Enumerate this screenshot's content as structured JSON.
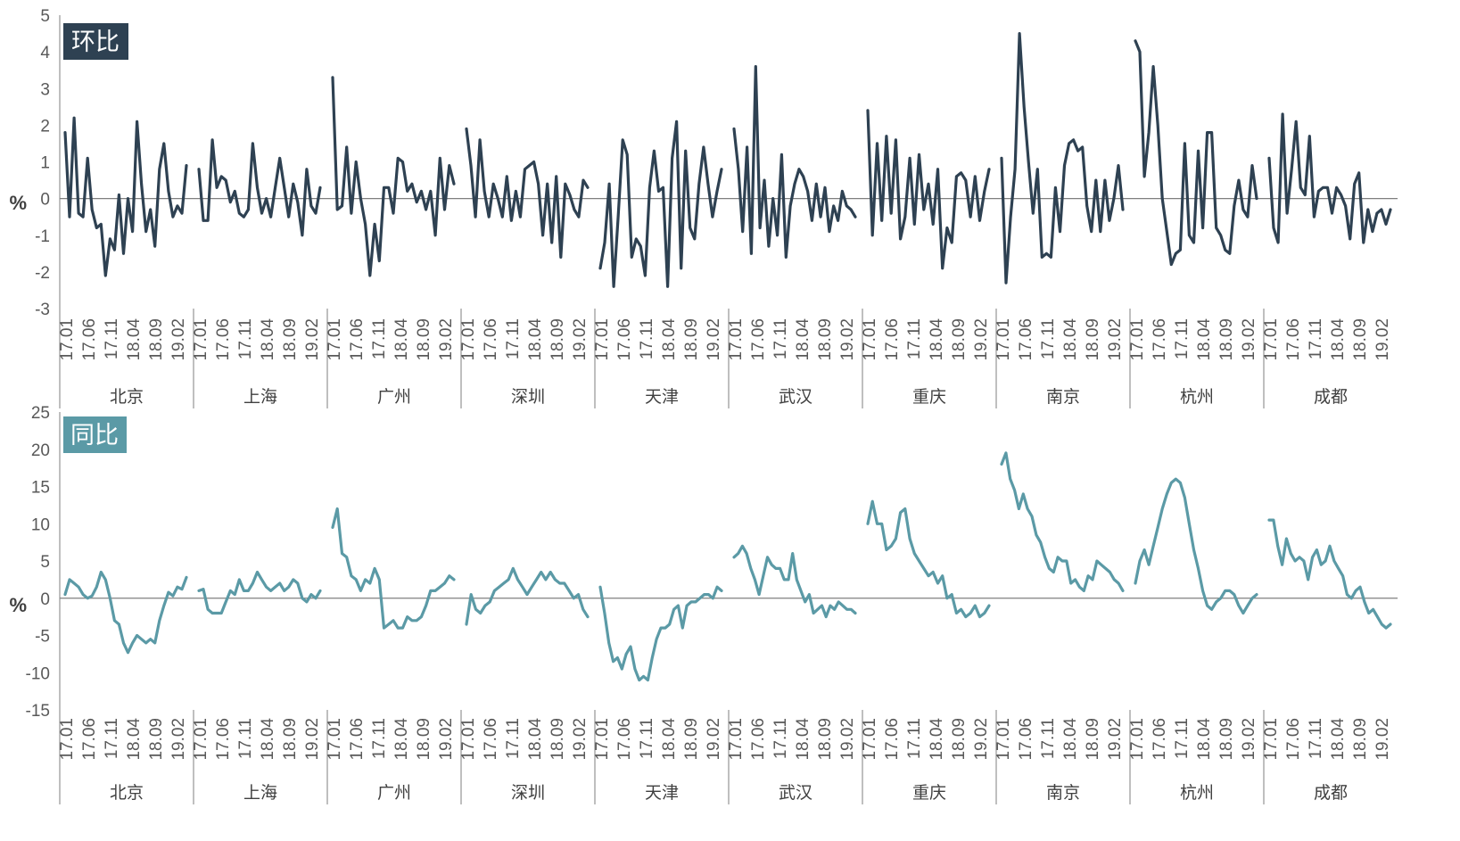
{
  "chart_data": [
    {
      "type": "line",
      "title": "环比",
      "ylabel": "%",
      "ylim": [
        -3,
        5
      ],
      "yticks": [
        -3,
        -2,
        -1,
        0,
        1,
        2,
        3,
        4,
        5
      ],
      "x_tick_labels": [
        "17.01",
        "17.06",
        "17.11",
        "18.04",
        "18.09",
        "19.02"
      ],
      "grid": false,
      "colors": {
        "line": "#2e4152",
        "title_bg": "#2e4152",
        "zero_line": "#7f7f7f"
      },
      "series": [
        {
          "name": "北京",
          "values": [
            1.8,
            -0.5,
            2.2,
            -0.4,
            -0.5,
            1.1,
            -0.3,
            -0.8,
            -0.7,
            -2.1,
            -1.1,
            -1.4,
            0.1,
            -1.5,
            0.0,
            -0.9,
            2.1,
            0.4,
            -0.9,
            -0.3,
            -1.3,
            0.8,
            1.5,
            0.2,
            -0.5,
            -0.2,
            -0.4,
            0.9
          ]
        },
        {
          "name": "上海",
          "values": [
            0.8,
            -0.6,
            -0.6,
            1.6,
            0.3,
            0.6,
            0.5,
            -0.1,
            0.2,
            -0.4,
            -0.5,
            -0.3,
            1.5,
            0.3,
            -0.4,
            0.0,
            -0.5,
            0.3,
            1.1,
            0.3,
            -0.5,
            0.4,
            -0.1,
            -1.0,
            0.8,
            -0.2,
            -0.4,
            0.3
          ]
        },
        {
          "name": "广州",
          "values": [
            3.3,
            -0.3,
            -0.2,
            1.4,
            -0.4,
            1.0,
            0.0,
            -0.7,
            -2.1,
            -0.7,
            -1.7,
            0.3,
            0.3,
            -0.4,
            1.1,
            1.0,
            0.2,
            0.4,
            -0.1,
            0.2,
            -0.3,
            0.2,
            -1.0,
            1.1,
            -0.3,
            0.9,
            0.4
          ]
        },
        {
          "name": "深圳",
          "values": [
            1.9,
            0.9,
            -0.5,
            1.6,
            0.2,
            -0.5,
            0.4,
            0.0,
            -0.5,
            0.6,
            -0.6,
            0.2,
            -0.5,
            0.8,
            0.9,
            1.0,
            0.4,
            -1.0,
            0.4,
            -1.2,
            0.6,
            -1.6,
            0.4,
            0.1,
            -0.3,
            -0.5,
            0.5,
            0.3
          ]
        },
        {
          "name": "天津",
          "values": [
            -1.9,
            -1.2,
            0.4,
            -2.4,
            -0.5,
            1.6,
            1.2,
            -1.6,
            -1.1,
            -1.3,
            -2.1,
            0.3,
            1.3,
            0.2,
            0.3,
            -2.4,
            1.1,
            2.1,
            -1.9,
            1.3,
            -0.8,
            -1.1,
            0.4,
            1.4,
            0.4,
            -0.5,
            0.2,
            0.8
          ]
        },
        {
          "name": "武汉",
          "values": [
            1.9,
            0.8,
            -0.9,
            1.4,
            -1.5,
            3.6,
            -0.8,
            0.5,
            -1.3,
            0.0,
            -1.0,
            1.2,
            -1.6,
            -0.2,
            0.4,
            0.8,
            0.6,
            0.2,
            -0.6,
            0.4,
            -0.5,
            0.3,
            -0.9,
            -0.2,
            -0.6,
            0.2,
            -0.2,
            -0.3,
            -0.5
          ]
        },
        {
          "name": "重庆",
          "values": [
            2.4,
            -1.0,
            1.5,
            -0.6,
            1.7,
            -0.4,
            1.6,
            -1.1,
            -0.5,
            1.1,
            -0.7,
            1.2,
            -0.3,
            0.4,
            -0.7,
            0.8,
            -1.9,
            -0.8,
            -1.2,
            0.6,
            0.7,
            0.5,
            -0.5,
            0.6,
            -0.6,
            0.2,
            0.8
          ]
        },
        {
          "name": "南京",
          "values": [
            1.1,
            -2.3,
            -0.5,
            0.8,
            4.5,
            2.5,
            1.0,
            -0.4,
            0.8,
            -1.6,
            -1.5,
            -1.6,
            0.3,
            -0.9,
            0.9,
            1.5,
            1.6,
            1.3,
            1.4,
            -0.2,
            -0.9,
            0.5,
            -0.9,
            0.5,
            -0.6,
            0.0,
            0.9,
            -0.3
          ]
        },
        {
          "name": "杭州",
          "values": [
            4.3,
            4.0,
            0.6,
            1.8,
            3.6,
            2.0,
            0.0,
            -0.9,
            -1.8,
            -1.5,
            -1.4,
            1.5,
            -1.0,
            -1.2,
            1.3,
            -0.8,
            1.8,
            1.8,
            -0.8,
            -1.0,
            -1.4,
            -1.5,
            -0.2,
            0.5,
            -0.3,
            -0.5,
            0.9,
            0.0
          ]
        },
        {
          "name": "成都",
          "values": [
            1.1,
            -0.8,
            -1.2,
            2.3,
            -0.4,
            0.8,
            2.1,
            0.3,
            0.1,
            1.7,
            -0.5,
            0.2,
            0.3,
            0.3,
            -0.4,
            0.3,
            0.1,
            -0.2,
            -1.1,
            0.4,
            0.7,
            -1.2,
            -0.3,
            -0.9,
            -0.4,
            -0.3,
            -0.7,
            -0.3
          ]
        }
      ]
    },
    {
      "type": "line",
      "title": "同比",
      "ylabel": "%",
      "ylim": [
        -15,
        25
      ],
      "yticks": [
        -15,
        -10,
        -5,
        0,
        5,
        10,
        15,
        20,
        25
      ],
      "x_tick_labels": [
        "17.01",
        "17.06",
        "17.11",
        "18.04",
        "18.09",
        "19.02"
      ],
      "grid": false,
      "colors": {
        "line": "#5b9aa6",
        "title_bg": "#5b9aa6",
        "zero_line": "#7f7f7f"
      },
      "series": [
        {
          "name": "北京",
          "values": [
            0.5,
            2.5,
            2.0,
            1.5,
            0.5,
            0.0,
            0.3,
            1.5,
            3.5,
            2.5,
            0.0,
            -3.0,
            -3.5,
            -6.0,
            -7.3,
            -6.0,
            -5.0,
            -5.5,
            -6.0,
            -5.5,
            -6.0,
            -3.0,
            -1.0,
            0.8,
            0.3,
            1.5,
            1.2,
            2.8
          ]
        },
        {
          "name": "上海",
          "values": [
            1.0,
            1.2,
            -1.5,
            -2.0,
            -2.0,
            -2.0,
            -0.5,
            1.0,
            0.5,
            2.5,
            1.0,
            1.0,
            2.0,
            3.5,
            2.5,
            1.5,
            1.0,
            1.5,
            2.0,
            1.0,
            1.5,
            2.5,
            2.0,
            0.0,
            -0.5,
            0.5,
            0.0,
            1.0
          ]
        },
        {
          "name": "广州",
          "values": [
            9.5,
            12.0,
            6.0,
            5.5,
            3.0,
            2.5,
            1.0,
            2.5,
            2.0,
            4.0,
            2.5,
            -4.0,
            -3.5,
            -3.0,
            -4.0,
            -4.0,
            -2.5,
            -3.0,
            -3.0,
            -2.5,
            -1.0,
            1.0,
            1.0,
            1.5,
            2.0,
            3.0,
            2.5
          ]
        },
        {
          "name": "深圳",
          "values": [
            -3.5,
            0.5,
            -1.5,
            -2.0,
            -1.0,
            -0.5,
            1.0,
            1.5,
            2.0,
            2.5,
            4.0,
            2.5,
            1.5,
            0.5,
            1.5,
            2.5,
            3.5,
            2.5,
            3.5,
            2.5,
            2.0,
            2.0,
            1.0,
            0.0,
            0.5,
            -1.5,
            -2.5
          ]
        },
        {
          "name": "天津",
          "values": [
            1.5,
            -2.0,
            -6.0,
            -8.5,
            -8.0,
            -9.5,
            -7.5,
            -6.5,
            -9.5,
            -11.0,
            -10.5,
            -11.0,
            -8.0,
            -5.5,
            -4.0,
            -4.0,
            -3.5,
            -1.5,
            -1.0,
            -4.0,
            -1.0,
            -0.5,
            -0.5,
            0.0,
            0.5,
            0.5,
            0.0,
            1.5,
            1.0
          ]
        },
        {
          "name": "武汉",
          "values": [
            5.5,
            6.0,
            7.0,
            6.0,
            4.0,
            2.5,
            0.5,
            3.0,
            5.5,
            4.5,
            4.0,
            4.0,
            2.5,
            2.5,
            6.0,
            2.5,
            1.0,
            -0.5,
            0.5,
            -2.0,
            -1.5,
            -1.0,
            -2.5,
            -1.0,
            -1.5,
            -0.5,
            -1.0,
            -1.5,
            -1.5,
            -2.0
          ]
        },
        {
          "name": "重庆",
          "values": [
            10.0,
            13.0,
            10.0,
            10.0,
            6.5,
            7.0,
            8.0,
            11.5,
            12.0,
            8.0,
            6.0,
            5.0,
            4.0,
            3.0,
            3.5,
            2.0,
            3.0,
            0.0,
            0.5,
            -2.0,
            -1.5,
            -2.5,
            -2.0,
            -1.0,
            -2.5,
            -2.0,
            -1.0
          ]
        },
        {
          "name": "南京",
          "values": [
            18.0,
            19.5,
            16.0,
            14.5,
            12.0,
            14.0,
            12.0,
            11.0,
            8.5,
            7.5,
            5.5,
            4.0,
            3.5,
            5.5,
            5.0,
            5.0,
            2.0,
            2.5,
            1.5,
            1.0,
            3.0,
            2.5,
            5.0,
            4.5,
            4.0,
            3.5,
            2.5,
            2.0,
            1.0
          ]
        },
        {
          "name": "杭州",
          "values": [
            2.0,
            5.0,
            6.5,
            4.5,
            7.0,
            9.5,
            12.0,
            14.0,
            15.5,
            16.0,
            15.5,
            13.5,
            10.0,
            6.5,
            4.0,
            1.0,
            -1.0,
            -1.5,
            -0.5,
            0.0,
            1.0,
            1.0,
            0.5,
            -1.0,
            -2.0,
            -1.0,
            0.0,
            0.5
          ]
        },
        {
          "name": "成都",
          "values": [
            10.5,
            10.5,
            7.0,
            4.5,
            8.0,
            6.0,
            5.0,
            5.5,
            5.0,
            2.5,
            5.5,
            6.5,
            4.5,
            5.0,
            7.0,
            5.0,
            4.0,
            3.0,
            0.5,
            0.0,
            1.0,
            1.5,
            -0.5,
            -2.0,
            -1.5,
            -2.5,
            -3.5,
            -4.0,
            -3.5
          ]
        }
      ]
    }
  ]
}
